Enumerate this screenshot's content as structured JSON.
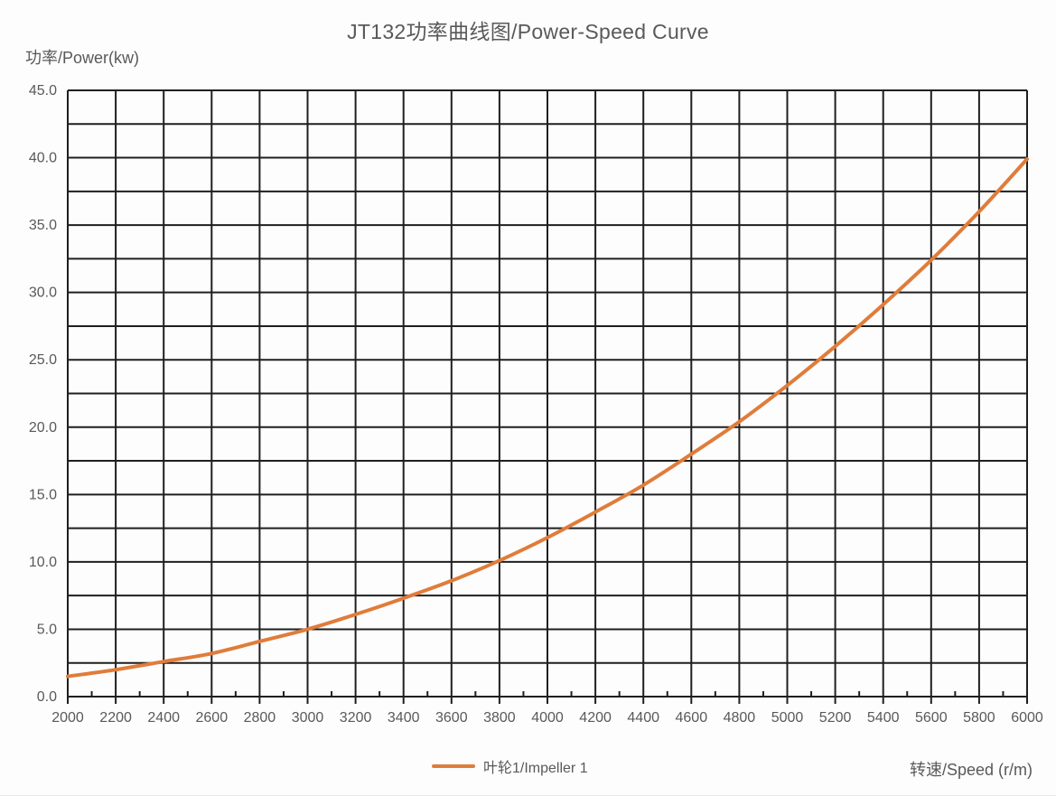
{
  "title": "JT132功率曲线图/Power-Speed Curve",
  "y_axis_title": "功率/Power(kw)",
  "x_axis_title": "转速/Speed (r/m)",
  "legend": {
    "label": "叶轮1/Impeller 1"
  },
  "colors": {
    "curve": "#E07C3A",
    "grid": "#1f1f1f",
    "text": "#595959",
    "background": "#fdfdfd"
  },
  "chart_data": {
    "type": "line",
    "title": "JT132功率曲线图/Power-Speed Curve",
    "xlabel": "转速/Speed (r/m)",
    "ylabel": "功率/Power(kw)",
    "xlim": [
      2000,
      6000
    ],
    "ylim": [
      0,
      45
    ],
    "x_tick_step": 200,
    "x_minor_tick_step": 100,
    "y_tick_step": 5,
    "y_minor_gridline_step": 2.5,
    "grid": "on",
    "legend_position": "bottom",
    "x_tick_labels": [
      "2000",
      "2200",
      "2400",
      "2600",
      "2800",
      "3000",
      "3200",
      "3400",
      "3600",
      "3800",
      "4000",
      "4200",
      "4400",
      "4600",
      "4800",
      "5000",
      "5200",
      "5400",
      "5600",
      "5800",
      "6000"
    ],
    "y_tick_labels": [
      "0.0",
      "5.0",
      "10.0",
      "15.0",
      "20.0",
      "25.0",
      "30.0",
      "35.0",
      "40.0",
      "45.0"
    ],
    "series": [
      {
        "name": "叶轮1/Impeller 1",
        "color": "#E07C3A",
        "x": [
          2000,
          2200,
          2400,
          2600,
          2800,
          3000,
          3200,
          3400,
          3600,
          3800,
          4000,
          4200,
          4400,
          4600,
          4800,
          5000,
          5200,
          5400,
          5600,
          5800,
          6000
        ],
        "y": [
          1.5,
          2.0,
          2.6,
          3.2,
          4.1,
          5.0,
          6.1,
          7.3,
          8.6,
          10.1,
          11.8,
          13.7,
          15.7,
          18.0,
          20.4,
          23.1,
          26.0,
          29.1,
          32.4,
          36.0,
          39.9
        ]
      }
    ]
  }
}
